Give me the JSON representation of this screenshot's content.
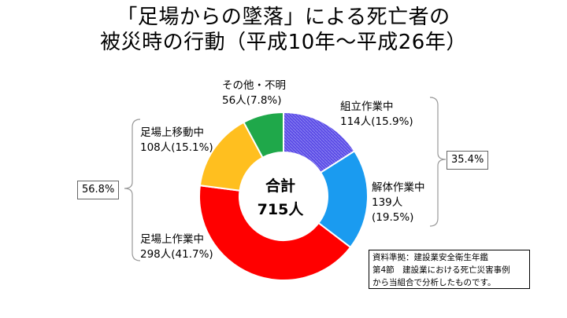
{
  "title": {
    "line1": "「足場からの墜落」による死亡者の",
    "line2": "被災時の行動（平成10年～平成26年）"
  },
  "chart_data": {
    "type": "pie",
    "donut": true,
    "total": {
      "label": "合計",
      "value": "715人"
    },
    "slices": [
      {
        "name": "組立作業中",
        "count": 114,
        "count_text": "114人",
        "percent_text": "(15.9%)",
        "color": "#5b4be6",
        "hatched": true
      },
      {
        "name": "解体作業中",
        "count": 139,
        "count_text": "139人",
        "percent_text": "(19.5%)",
        "color": "#1a9bf0"
      },
      {
        "name": "足場上作業中",
        "count": 298,
        "count_text": "298人",
        "percent_text": "(41.7%)",
        "color": "#ff0000"
      },
      {
        "name": "足場上移動中",
        "count": 108,
        "count_text": "108人",
        "percent_text": "(15.1%)",
        "color": "#ffbf1f"
      },
      {
        "name": "その他・不明",
        "count": 56,
        "count_text": "56人",
        "percent_text": "(7.8%)",
        "color": "#1fa84a"
      }
    ],
    "groups": [
      {
        "value": "35.4%",
        "side": "right"
      },
      {
        "value": "56.8%",
        "side": "left"
      }
    ]
  },
  "source": {
    "line1": "資料準拠：建設業安全衛生年鑑",
    "line2": "第4節　建設業における死亡災害事例",
    "line3": "から当組合で分析したものです。"
  }
}
